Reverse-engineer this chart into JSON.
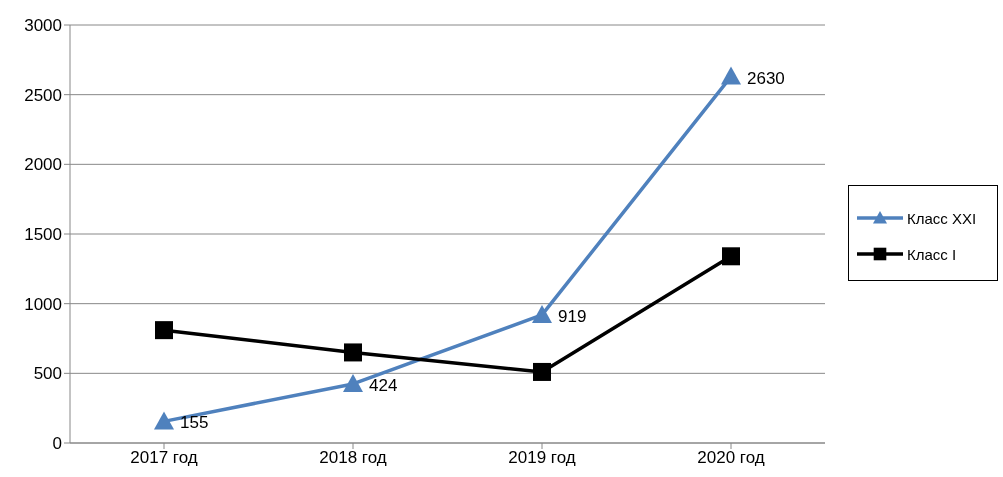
{
  "chart_data": {
    "type": "line",
    "categories": [
      "2017 год",
      "2018 год",
      "2019 год",
      "2020 год"
    ],
    "series": [
      {
        "name": "Класс XXI",
        "color": "#4f81bd",
        "marker": "triangle",
        "values": [
          155,
          424,
          919,
          2630
        ],
        "value_labels": [
          "155",
          "424",
          "919",
          "2630"
        ]
      },
      {
        "name": "Класс I",
        "color": "#000000",
        "marker": "square",
        "values": [
          810,
          650,
          510,
          1340
        ]
      }
    ],
    "ylim": [
      0,
      3000
    ],
    "yticks": [
      0,
      500,
      1000,
      1500,
      2000,
      2500,
      3000
    ],
    "grid": "y",
    "legend": "right",
    "line_style": "solid"
  }
}
